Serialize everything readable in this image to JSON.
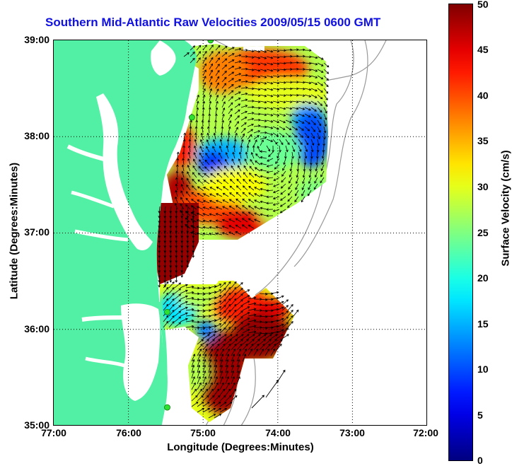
{
  "title": "Southern Mid-Atlantic Raw Velocities 2009/05/15 0600 GMT",
  "x_axis": {
    "label": "Longitude (Degrees:Minutes)",
    "ticks": [
      "77:00",
      "76:00",
      "75:00",
      "74:00",
      "73:00",
      "72:00"
    ]
  },
  "y_axis": {
    "label": "Latitude (Degrees:Minutes)",
    "ticks": [
      "39:00",
      "38:00",
      "37:00",
      "36:00",
      "35:00"
    ]
  },
  "colorbar": {
    "label": "Surface Velocity (cm/s)",
    "ticks": [
      "50",
      "45",
      "40",
      "35",
      "30",
      "25",
      "20",
      "15",
      "10",
      "5",
      "0"
    ],
    "range": [
      0,
      50
    ]
  },
  "colors": {
    "land": "#52f0a4",
    "title": "#1010e0",
    "station": "#30e030",
    "bathymetry": "#999999",
    "vectors": "#000000"
  },
  "stations": [
    {
      "lon": -74.9,
      "lat": 39.0
    },
    {
      "lon": -75.15,
      "lat": 38.2
    },
    {
      "lon": -75.48,
      "lat": 36.18
    },
    {
      "lon": -75.48,
      "lat": 35.19
    }
  ]
}
